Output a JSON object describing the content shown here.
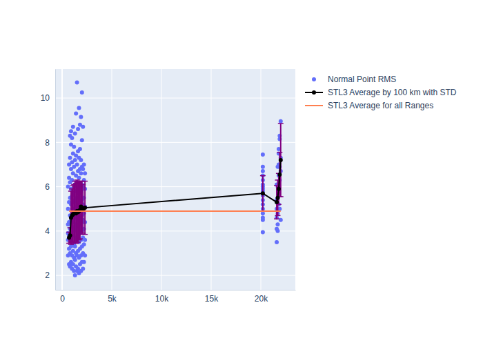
{
  "chart_data": {
    "type": "scatter",
    "xlim": [
      -694,
      23472
    ],
    "ylim": [
      1.35,
      11.31
    ],
    "xticks": [
      0,
      {
        "value": 5000,
        "label": "5k"
      },
      {
        "value": 10000,
        "label": "10k"
      },
      {
        "value": 15000,
        "label": "15k"
      },
      {
        "value": 20000,
        "label": "20k"
      }
    ],
    "yticks": [
      2,
      4,
      6,
      8,
      10
    ],
    "grid": true,
    "legend": "right",
    "series": [
      {
        "name": "Normal Point RMS",
        "type": "scatter",
        "color": "#636efa",
        "marker": "circle",
        "x": [
          600,
          600,
          600,
          600,
          600,
          600,
          700,
          700,
          700,
          700,
          700,
          700,
          700,
          800,
          800,
          800,
          800,
          800,
          800,
          800,
          800,
          800,
          900,
          900,
          900,
          900,
          900,
          900,
          900,
          900,
          900,
          1000,
          1000,
          1000,
          1000,
          1000,
          1000,
          1000,
          1000,
          1000,
          1100,
          1100,
          1100,
          1100,
          1100,
          1100,
          1100,
          1100,
          1100,
          1200,
          1200,
          1200,
          1200,
          1200,
          1200,
          1200,
          1200,
          1200,
          1300,
          1300,
          1300,
          1300,
          1300,
          1300,
          1300,
          1300,
          1300,
          1400,
          1400,
          1400,
          1400,
          1400,
          1400,
          1400,
          1400,
          1400,
          1500,
          1500,
          1500,
          1500,
          1500,
          1500,
          1500,
          1500,
          1500,
          1600,
          1600,
          1600,
          1600,
          1600,
          1600,
          1600,
          1600,
          1600,
          1700,
          1700,
          1700,
          1700,
          1700,
          1700,
          1700,
          1700,
          1700,
          1800,
          1800,
          1800,
          1800,
          1800,
          1800,
          1800,
          1800,
          1800,
          1900,
          1900,
          1900,
          1900,
          1900,
          1900,
          1900,
          1900,
          1900,
          2000,
          2000,
          2000,
          2000,
          2000,
          2000,
          2000,
          2000,
          2000,
          2100,
          2100,
          2100,
          2100,
          2100,
          2100,
          2100,
          2100,
          2200,
          2200,
          2200,
          2200,
          2200,
          2200,
          2200,
          2300,
          2300,
          2300,
          2300,
          2300,
          2300,
          20200,
          20200,
          20200,
          20200,
          20200,
          20200,
          20200,
          20200,
          20200,
          20200,
          20200,
          20200,
          20200,
          20200,
          20200,
          20200,
          20200,
          21600,
          21600,
          21600,
          21600,
          21600,
          21600,
          21700,
          21700,
          21700,
          21700,
          21700,
          21700,
          21800,
          21800,
          21800,
          21800,
          21800,
          21800,
          21900,
          21900,
          21900,
          21900,
          21900,
          22000,
          22000,
          22000,
          22000
        ],
        "values": [
          3.6,
          3.9,
          4.3,
          5.0,
          6.0,
          2.9,
          2.5,
          3.2,
          3.8,
          4.4,
          5.3,
          6.4,
          7.0,
          2.4,
          3.0,
          3.6,
          4.1,
          4.7,
          5.5,
          6.2,
          7.3,
          8.3,
          2.6,
          3.3,
          3.9,
          4.5,
          5.2,
          5.9,
          6.8,
          7.9,
          8.5,
          2.3,
          2.9,
          3.5,
          4.2,
          4.9,
          5.6,
          6.3,
          7.1,
          8.2,
          2.5,
          3.1,
          3.8,
          4.4,
          5.0,
          5.7,
          6.6,
          7.5,
          8.7,
          2.2,
          2.8,
          3.4,
          4.0,
          4.6,
          5.3,
          6.0,
          6.9,
          7.8,
          2.0,
          2.7,
          3.3,
          4.1,
          4.8,
          5.4,
          6.1,
          7.2,
          8.4,
          2.4,
          3.0,
          3.7,
          4.3,
          5.1,
          5.8,
          6.5,
          7.4,
          9.3,
          2.2,
          2.9,
          3.6,
          4.2,
          4.9,
          5.5,
          6.2,
          7.0,
          10.7,
          2.3,
          3.1,
          3.8,
          4.5,
          5.2,
          5.9,
          6.7,
          7.6,
          8.6,
          2.1,
          2.8,
          3.5,
          4.3,
          5.0,
          5.7,
          6.4,
          7.3,
          9.55,
          2.5,
          3.2,
          3.9,
          4.6,
          5.3,
          6.0,
          6.8,
          7.7,
          8.8,
          2.2,
          2.9,
          3.6,
          4.4,
          5.1,
          5.8,
          6.6,
          7.2,
          9.15,
          2.6,
          3.3,
          4.0,
          4.7,
          5.4,
          6.1,
          6.9,
          8.1,
          10.25,
          2.3,
          3.0,
          3.7,
          4.5,
          5.2,
          6.0,
          6.8,
          8.7,
          2.6,
          3.4,
          4.1,
          4.8,
          5.5,
          6.3,
          7.0,
          2.9,
          3.6,
          4.4,
          5.1,
          5.9,
          6.6,
          7.45,
          6.9,
          6.7,
          6.5,
          6.3,
          6.1,
          6.0,
          5.9,
          5.8,
          5.6,
          5.4,
          5.2,
          5.0,
          4.8,
          4.6,
          4.5,
          3.95,
          6.1,
          5.4,
          5.0,
          4.6,
          4.1,
          3.5,
          6.9,
          6.0,
          5.5,
          4.8,
          4.3,
          4.0,
          7.7,
          7.5,
          7.0,
          6.5,
          5.8,
          5.2,
          8.3,
          8.15,
          6.9,
          6.3,
          5.0,
          8.95,
          7.3,
          6.7,
          4.5
        ]
      },
      {
        "name": "STL3 Average by 100 km with STD",
        "type": "line",
        "color": "#000000",
        "marker": "circle",
        "x": [
          700,
          800,
          900,
          1000,
          1100,
          1200,
          1300,
          1400,
          1500,
          1600,
          1700,
          1800,
          1900,
          2000,
          2100,
          2300,
          20200,
          21600,
          21700,
          21800,
          21900,
          22000
        ],
        "values": [
          3.7,
          3.8,
          4.6,
          4.7,
          4.75,
          4.8,
          4.85,
          4.8,
          4.9,
          4.85,
          4.9,
          4.95,
          5.1,
          5.05,
          5.0,
          5.05,
          5.7,
          5.3,
          5.5,
          5.9,
          6.55,
          7.2
        ],
        "error": [
          0.25,
          0.35,
          1.2,
          1.2,
          1.3,
          1.3,
          1.4,
          1.35,
          1.4,
          1.35,
          1.3,
          1.3,
          1.15,
          1.2,
          1.1,
          1.2,
          0.8,
          0.75,
          0.8,
          0.7,
          1.0,
          1.65
        ]
      },
      {
        "name": "STL3 Average for all Ranges",
        "type": "line",
        "color": "#ff7f50",
        "x": [
          700,
          22000
        ],
        "values": [
          4.9,
          4.9
        ]
      }
    ]
  }
}
